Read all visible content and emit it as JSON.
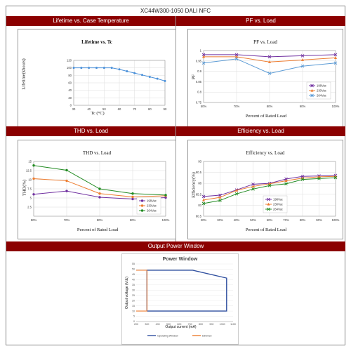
{
  "doc": {
    "title": "XC44W300-1050 DALI NFC"
  },
  "sections": {
    "lifetime": "Lifetime vs. Case Temperature",
    "pf": "PF vs. Load",
    "thd": "THD vs. Load",
    "eff": "Efficiency vs. Load",
    "power": "Output Power Window"
  },
  "colors": {
    "banner": "#8b0000",
    "s1": "#7030a0",
    "s2": "#ed7d31",
    "s3": "#5b9bd5",
    "s3g": "#228b22",
    "lifetime": "#4a90d9",
    "window": "#2f4f9f",
    "dimmed": "#ed7d31"
  },
  "chart_data": [
    {
      "id": "lifetime",
      "type": "line",
      "title": "Lifetime vs. Tc",
      "xlabel": "Tc (°C)",
      "ylabel": "Lifetime(khours)",
      "xlim": [
        30,
        90
      ],
      "ylim": [
        0,
        120
      ],
      "xticks": [
        "30",
        "40",
        "50",
        "60",
        "70",
        "80",
        "90"
      ],
      "yticks": [
        "0",
        "20",
        "40",
        "60",
        "80",
        "100",
        "120"
      ],
      "x": [
        30,
        35,
        40,
        45,
        50,
        55,
        60,
        65,
        70,
        75,
        80,
        85,
        90
      ],
      "series": [
        {
          "values": [
            100,
            100,
            100,
            100,
            100,
            100,
            96,
            91,
            86,
            81,
            76,
            71,
            65
          ]
        }
      ]
    },
    {
      "id": "pf",
      "type": "line",
      "title": "PF vs. Load",
      "xlabel": "Percent of Rated Load",
      "ylabel": "PF",
      "categories": [
        "50%",
        "70%",
        "80%",
        "90%",
        "100%"
      ],
      "ylim": [
        0.75,
        1
      ],
      "yticks": [
        "0.75",
        "0.8",
        "0.85",
        "0.9",
        "0.95",
        "1"
      ],
      "legend": "bottom-right",
      "series": [
        {
          "name": "198Vac",
          "values": [
            0.98,
            0.98,
            0.97,
            0.975,
            0.98
          ]
        },
        {
          "name": "230Vac",
          "values": [
            0.97,
            0.97,
            0.945,
            0.955,
            0.965
          ]
        },
        {
          "name": "264Vac",
          "values": [
            0.94,
            0.96,
            0.89,
            0.925,
            0.94
          ]
        }
      ]
    },
    {
      "id": "thd",
      "type": "line",
      "title": "THD vs. Load",
      "xlabel": "Percent of Rated Load",
      "ylabel": "THD(%)",
      "categories": [
        "50%",
        "70%",
        "80%",
        "90%",
        "100%"
      ],
      "ylim": [
        0,
        15
      ],
      "yticks": [
        "",
        "2.5",
        "5",
        "7.5",
        "10",
        "12.5",
        "15"
      ],
      "legend": "bottom-right",
      "series": [
        {
          "name": "198Vac",
          "values": [
            6.0,
            6.9,
            5.2,
            4.7,
            5.1
          ]
        },
        {
          "name": "230Vac",
          "values": [
            10.3,
            9.7,
            6.2,
            5.3,
            5.6
          ]
        },
        {
          "name": "264Vac",
          "values": [
            13.9,
            12.6,
            7.5,
            6.2,
            5.8
          ]
        }
      ]
    },
    {
      "id": "eff",
      "type": "line",
      "title": "Efficiency vs. Load",
      "xlabel": "Percent of Rated Load",
      "ylabel": "Efficiency(%)",
      "categories": [
        "20%",
        "30%",
        "40%",
        "50%",
        "60%",
        "70%",
        "80%",
        "90%",
        "100%"
      ],
      "ylim": [
        80.5,
        93
      ],
      "yticks": [
        "80.5",
        "83",
        "85.5",
        "88",
        "90.5",
        "93"
      ],
      "legend": "bottom-right",
      "series": [
        {
          "name": "198Vac",
          "values": [
            85.0,
            85.3,
            86.5,
            87.8,
            88.0,
            89.0,
            89.6,
            89.7,
            89.8
          ]
        },
        {
          "name": "230Vac",
          "values": [
            84.2,
            84.8,
            86.4,
            87.3,
            87.9,
            88.6,
            89.2,
            89.5,
            89.6
          ]
        },
        {
          "name": "264Vac",
          "values": [
            83.4,
            84.1,
            85.6,
            86.7,
            87.5,
            87.9,
            88.9,
            89.1,
            89.3
          ]
        }
      ]
    },
    {
      "id": "power",
      "type": "area",
      "title": "Power Window",
      "xlabel": "Output current (mA)",
      "ylabel": "Output voltage (Vdc)",
      "xlim": [
        200,
        1100
      ],
      "ylim": [
        0,
        55
      ],
      "xticks": [
        "200",
        "300",
        "400",
        "500",
        "600",
        "700",
        "800",
        "900",
        "1000",
        "1100"
      ],
      "yticks": [
        "0",
        "5",
        "10",
        "15",
        "20",
        "25",
        "30",
        "35",
        "40",
        "45",
        "50",
        "55"
      ],
      "series": [
        {
          "name": "Operating Window",
          "x": [
            300,
            300,
            725,
            1040,
            1040,
            300
          ],
          "y": [
            10,
            49,
            49,
            41.5,
            10,
            10
          ]
        },
        {
          "name": "Dimmed",
          "x": [
            200,
            300,
            300,
            200
          ],
          "y": [
            49,
            49,
            10,
            10
          ]
        }
      ]
    }
  ]
}
